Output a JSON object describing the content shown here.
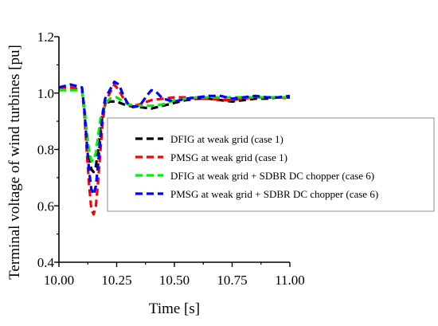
{
  "chart_data": {
    "type": "line",
    "title": "",
    "xlabel": "Time [s]",
    "ylabel": "Terminal voltage of wind turbines [pu]",
    "xlim": [
      10.0,
      11.0
    ],
    "ylim": [
      0.4,
      1.2
    ],
    "xticks": [
      "10.00",
      "10.25",
      "10.50",
      "10.75",
      "11.00"
    ],
    "yticks": [
      "0.4",
      "0.6",
      "0.8",
      "1.0",
      "1.2"
    ],
    "grid": false,
    "legend_position": "right",
    "series": [
      {
        "name": "DFIG at weak grid (case 1)",
        "color": "#000000",
        "x": [
          10.0,
          10.05,
          10.1,
          10.11,
          10.12,
          10.13,
          10.14,
          10.15,
          10.16,
          10.17,
          10.18,
          10.19,
          10.2,
          10.22,
          10.25,
          10.28,
          10.3,
          10.35,
          10.4,
          10.45,
          10.5,
          10.55,
          10.6,
          10.65,
          10.7,
          10.75,
          10.8,
          10.85,
          10.9,
          10.95,
          11.0
        ],
        "y": [
          1.02,
          1.02,
          1.01,
          0.95,
          0.86,
          0.78,
          0.73,
          0.72,
          0.74,
          0.8,
          0.88,
          0.93,
          0.96,
          0.97,
          0.97,
          0.96,
          0.955,
          0.95,
          0.945,
          0.955,
          0.965,
          0.975,
          0.98,
          0.98,
          0.975,
          0.97,
          0.975,
          0.98,
          0.98,
          0.985,
          0.985
        ]
      },
      {
        "name": "PMSG at weak grid (case 1)",
        "color": "#ff0000",
        "x": [
          10.0,
          10.05,
          10.1,
          10.11,
          10.12,
          10.13,
          10.14,
          10.15,
          10.16,
          10.17,
          10.18,
          10.19,
          10.2,
          10.22,
          10.24,
          10.26,
          10.28,
          10.3,
          10.32,
          10.35,
          10.4,
          10.45,
          10.5,
          10.55,
          10.6,
          10.65,
          10.7,
          10.75,
          10.8,
          10.85,
          10.9,
          10.95,
          11.0
        ],
        "y": [
          1.02,
          1.02,
          1.01,
          0.93,
          0.8,
          0.68,
          0.59,
          0.57,
          0.6,
          0.69,
          0.8,
          0.9,
          0.96,
          1.0,
          1.03,
          1.01,
          0.98,
          0.96,
          0.955,
          0.96,
          0.975,
          0.98,
          0.985,
          0.985,
          0.98,
          0.98,
          0.975,
          0.975,
          0.98,
          0.985,
          0.985,
          0.985,
          0.98
        ]
      },
      {
        "name": "DFIG at weak grid + SDBR DC chopper (case 6)",
        "color": "#00ee00",
        "x": [
          10.0,
          10.05,
          10.1,
          10.11,
          10.12,
          10.13,
          10.14,
          10.15,
          10.16,
          10.17,
          10.18,
          10.2,
          10.22,
          10.25,
          10.28,
          10.3,
          10.35,
          10.4,
          10.45,
          10.5,
          10.55,
          10.6,
          10.65,
          10.7,
          10.75,
          10.8,
          10.85,
          10.9,
          10.95,
          11.0
        ],
        "y": [
          1.01,
          1.01,
          1.01,
          0.95,
          0.87,
          0.8,
          0.76,
          0.76,
          0.79,
          0.85,
          0.91,
          0.96,
          0.98,
          0.985,
          0.97,
          0.96,
          0.955,
          0.955,
          0.96,
          0.975,
          0.98,
          0.985,
          0.985,
          0.985,
          0.985,
          0.985,
          0.985,
          0.985,
          0.985,
          0.985
        ]
      },
      {
        "name": "PMSG at weak grid + SDBR DC chopper (case 6)",
        "color": "#0000ff",
        "x": [
          10.0,
          10.05,
          10.1,
          10.11,
          10.12,
          10.13,
          10.14,
          10.15,
          10.16,
          10.17,
          10.18,
          10.19,
          10.2,
          10.22,
          10.24,
          10.26,
          10.28,
          10.3,
          10.32,
          10.35,
          10.38,
          10.4,
          10.42,
          10.45,
          10.5,
          10.55,
          10.6,
          10.65,
          10.7,
          10.75,
          10.8,
          10.85,
          10.9,
          10.95,
          11.0
        ],
        "y": [
          1.02,
          1.03,
          1.02,
          0.94,
          0.83,
          0.73,
          0.66,
          0.64,
          0.67,
          0.75,
          0.85,
          0.93,
          0.98,
          1.01,
          1.04,
          1.03,
          0.99,
          0.96,
          0.95,
          0.955,
          0.99,
          1.01,
          1.005,
          0.98,
          0.97,
          0.98,
          0.985,
          0.99,
          0.99,
          0.98,
          0.985,
          0.99,
          0.985,
          0.985,
          0.99
        ]
      }
    ]
  }
}
